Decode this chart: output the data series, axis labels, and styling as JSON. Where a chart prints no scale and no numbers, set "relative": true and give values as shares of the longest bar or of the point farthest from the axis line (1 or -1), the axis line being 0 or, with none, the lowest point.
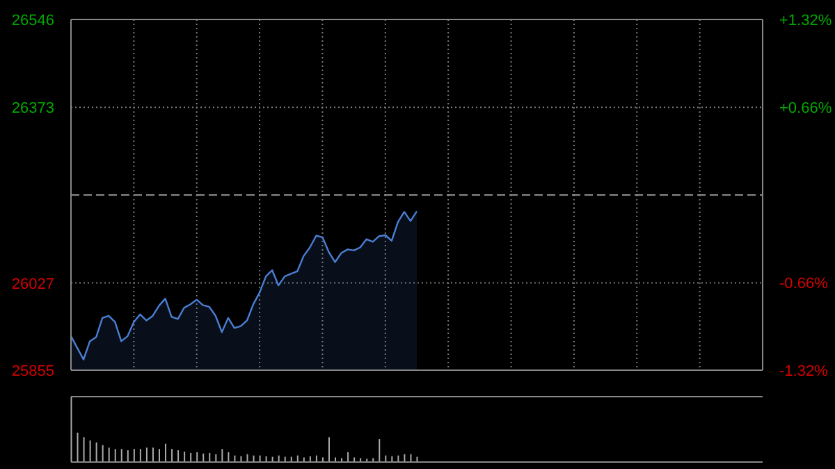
{
  "chart_data": [
    {
      "type": "area",
      "categories": [
        null,
        null,
        null,
        null,
        null,
        null,
        null,
        null,
        null,
        null,
        null,
        null,
        null,
        null,
        null,
        null,
        null,
        null,
        null,
        null,
        null,
        null,
        null,
        null,
        null,
        null,
        null,
        null,
        null,
        null,
        null,
        null,
        null,
        null,
        null,
        null,
        null,
        null,
        null,
        null,
        null,
        null,
        null,
        null,
        null,
        null,
        null,
        null,
        null,
        null,
        null,
        null,
        null,
        null,
        null,
        null,
        null,
        null,
        null,
        null,
        null,
        null,
        null,
        null,
        null,
        null,
        null,
        null,
        null,
        null,
        null,
        null,
        null,
        null,
        null,
        null,
        null,
        null,
        null,
        null,
        null,
        null,
        null,
        null,
        null,
        null,
        null,
        null,
        null,
        null,
        null,
        null,
        null,
        null,
        null,
        null,
        null,
        null,
        null,
        null,
        null,
        null,
        null,
        null,
        null,
        null,
        null,
        null,
        null,
        null,
        null
      ],
      "ylim": [
        25855,
        26546
      ],
      "yticks": [
        25855,
        26027,
        26373,
        26546
      ],
      "y2lim": [
        -1.32,
        1.32
      ],
      "y2ticks": [
        {
          "value": -1.32,
          "label": "-1.32%"
        },
        {
          "value": -0.66,
          "label": "-0.66%"
        },
        {
          "value": 0.66,
          "label": "+0.66%"
        },
        {
          "value": 1.32,
          "label": "+1.32%"
        }
      ],
      "grid": true,
      "tick_labels": "y",
      "ref_lines": [
        {
          "axis": "y",
          "value": 26200,
          "color": "#999999",
          "line_style": "dashed"
        }
      ],
      "series": [
        {
          "color": "#4a7fd4",
          "values": [
            25922,
            25899,
            25876,
            25912,
            25920,
            25958,
            25962,
            25950,
            25912,
            25922,
            25950,
            25965,
            25953,
            25962,
            25982,
            25996,
            25960,
            25956,
            25978,
            25985,
            25994,
            25983,
            25980,
            25962,
            25930,
            25958,
            25938,
            25942,
            25953,
            25985,
            26008,
            26040,
            26052,
            26022,
            26040,
            26045,
            26050,
            26080,
            26097,
            26120,
            26117,
            26088,
            26068,
            26086,
            26093,
            26091,
            26097,
            26113,
            26108,
            26119,
            26121,
            26110,
            26147,
            26167,
            26149,
            26168,
            null,
            null,
            null,
            null,
            null,
            null,
            null,
            null,
            null,
            null,
            null,
            null,
            null,
            null,
            null,
            null,
            null,
            null,
            null,
            null,
            null,
            null,
            null,
            null,
            null,
            null,
            null,
            null,
            null,
            null,
            null,
            null,
            null,
            null,
            null,
            null,
            null,
            null,
            null,
            null,
            null,
            null,
            null,
            null,
            null,
            null,
            null,
            null,
            null,
            null,
            null,
            null,
            null,
            null,
            null
          ]
        }
      ]
    },
    {
      "type": "bar",
      "relative": true,
      "tick_labels": false,
      "categories": [
        null,
        null,
        null,
        null,
        null,
        null,
        null,
        null,
        null,
        null,
        null,
        null,
        null,
        null,
        null,
        null,
        null,
        null,
        null,
        null,
        null,
        null,
        null,
        null,
        null,
        null,
        null,
        null,
        null,
        null,
        null,
        null,
        null,
        null,
        null,
        null,
        null,
        null,
        null,
        null,
        null,
        null,
        null,
        null,
        null,
        null,
        null,
        null,
        null,
        null,
        null,
        null,
        null,
        null,
        null,
        null,
        null,
        null,
        null,
        null,
        null,
        null,
        null,
        null,
        null,
        null,
        null,
        null,
        null,
        null,
        null,
        null,
        null,
        null,
        null,
        null,
        null,
        null,
        null,
        null,
        null,
        null,
        null,
        null,
        null,
        null,
        null,
        null,
        null,
        null,
        null,
        null,
        null,
        null,
        null,
        null,
        null,
        null,
        null,
        null,
        null,
        null,
        null,
        null,
        null,
        null,
        null,
        null,
        null,
        null,
        null
      ],
      "series": [
        {
          "color": "#aaaaaa",
          "values": [
            1.0,
            0.45,
            0.38,
            0.33,
            0.3,
            0.26,
            0.22,
            0.2,
            0.2,
            0.18,
            0.2,
            0.2,
            0.22,
            0.22,
            0.2,
            0.28,
            0.2,
            0.18,
            0.16,
            0.14,
            0.15,
            0.13,
            0.14,
            0.12,
            0.2,
            0.15,
            0.1,
            0.09,
            0.12,
            0.1,
            0.1,
            0.09,
            0.08,
            0.1,
            0.08,
            0.08,
            0.1,
            0.07,
            0.09,
            0.1,
            0.07,
            0.38,
            0.07,
            0.06,
            0.15,
            0.07,
            0.06,
            0.05,
            0.06,
            0.35,
            0.1,
            0.09,
            0.1,
            0.12,
            0.12,
            0.08,
            null,
            null,
            null,
            null,
            null,
            null,
            null,
            null,
            null,
            null,
            null,
            null,
            null,
            null,
            null,
            null,
            null,
            null,
            null,
            null,
            null,
            null,
            null,
            null,
            null,
            null,
            null,
            null,
            null,
            null,
            null,
            null,
            null,
            null,
            null,
            null,
            null,
            null,
            null,
            null,
            null,
            null,
            null,
            null,
            null,
            null,
            null,
            null,
            null,
            null,
            null,
            null,
            null,
            null,
            null
          ]
        }
      ]
    }
  ]
}
